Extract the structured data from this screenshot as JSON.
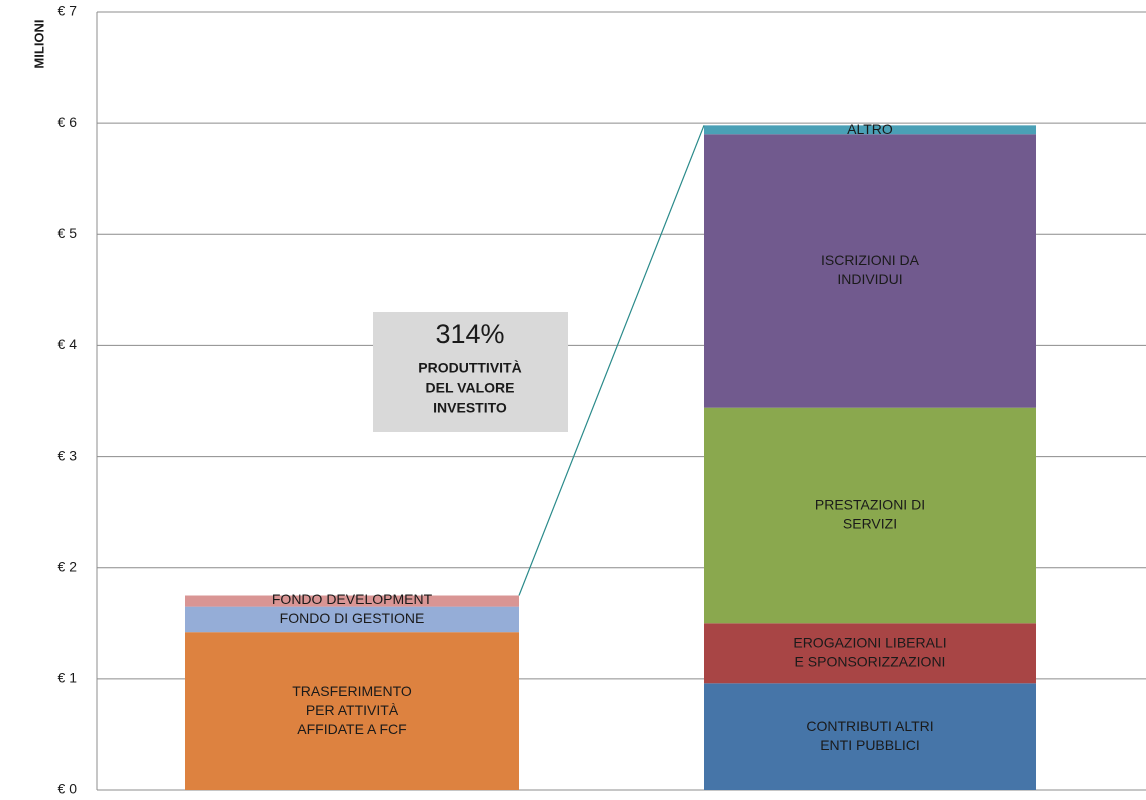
{
  "chart_data": {
    "type": "stacked_bar",
    "y_axis_label": "MILIONI",
    "ylim": [
      0,
      7
    ],
    "yticks": [
      {
        "value": 0,
        "label": "€ 0"
      },
      {
        "value": 1,
        "label": "€ 1"
      },
      {
        "value": 2,
        "label": "€ 2"
      },
      {
        "value": 3,
        "label": "€ 3"
      },
      {
        "value": 4,
        "label": "€ 4"
      },
      {
        "value": 5,
        "label": "€ 5"
      },
      {
        "value": 6,
        "label": "€ 6"
      },
      {
        "value": 7,
        "label": "€ 7"
      }
    ],
    "grid": true,
    "bars": [
      {
        "segments": [
          {
            "label": [
              "TRASFERIMENTO",
              "PER ATTIVITÀ",
              "AFFIDATE A FCF"
            ],
            "color": "#dd8240",
            "value": 1.42
          },
          {
            "label": [
              "FONDO DI GESTIONE"
            ],
            "color": "#95add7",
            "value": 0.23
          },
          {
            "label": [
              "FONDO DEVELOPMENT"
            ],
            "color": "#d99594",
            "value": 0.1
          }
        ]
      },
      {
        "segments": [
          {
            "label": [
              "CONTRIBUTI ALTRI",
              "ENTI PUBBLICI"
            ],
            "color": "#4675a8",
            "value": 0.96
          },
          {
            "label": [
              "EROGAZIONI LIBERALI",
              "E SPONSORIZZAZIONI"
            ],
            "color": "#a84545",
            "value": 0.54
          },
          {
            "label": [
              "PRESTAZIONI DI",
              "SERVIZI"
            ],
            "color": "#8aa84e",
            "value": 1.94
          },
          {
            "label": [
              "ISCRIZIONI DA",
              "INDIVIDUI"
            ],
            "color": "#715a8e",
            "value": 2.46
          },
          {
            "label": [
              "ALTRO"
            ],
            "color": "#4aa0b6",
            "value": 0.08
          }
        ]
      }
    ],
    "annotation": {
      "value_text": "314%",
      "text": [
        "PRODUTTIVITÀ",
        "DEL VALORE",
        "INVESTITO"
      ]
    }
  }
}
